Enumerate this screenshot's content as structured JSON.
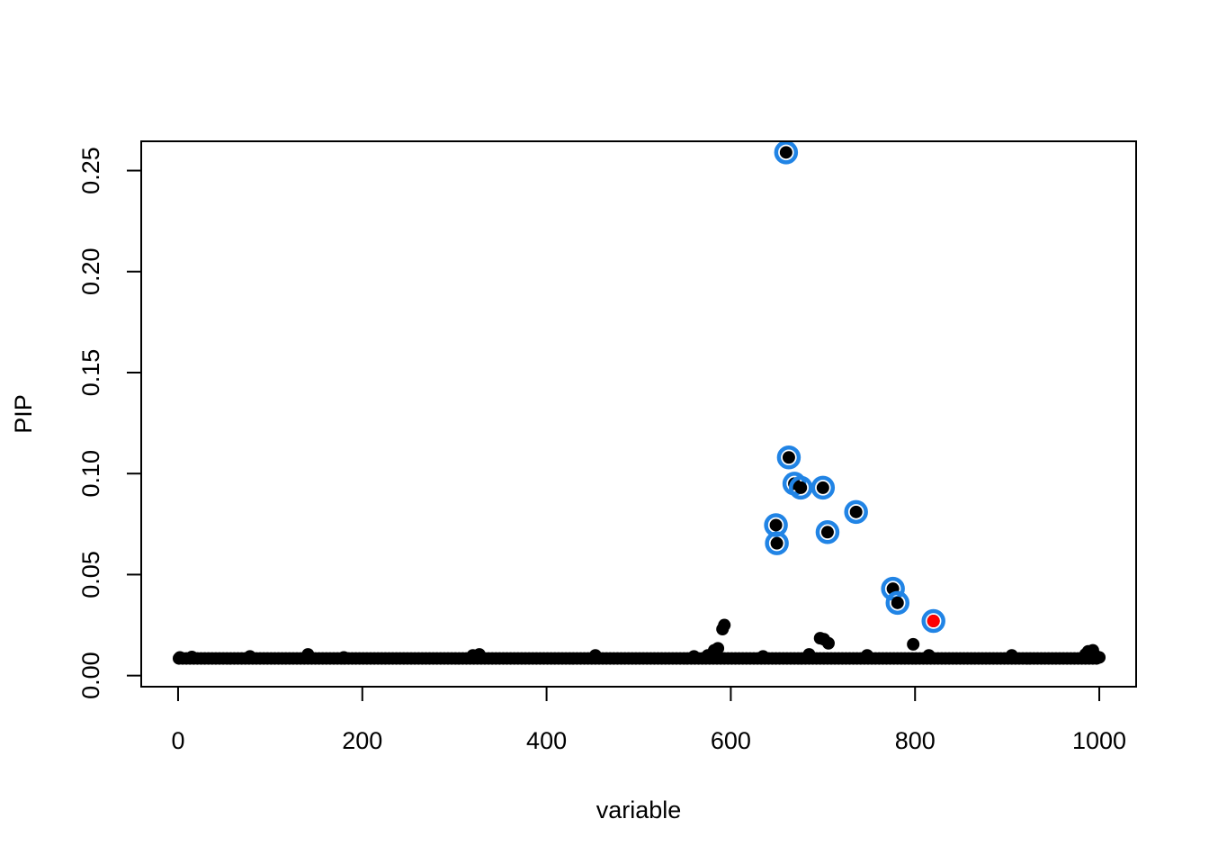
{
  "chart_data": {
    "type": "scatter",
    "xlabel": "variable",
    "ylabel": "PIP",
    "xlim": [
      -40,
      1040
    ],
    "ylim": [
      -0.0055,
      0.2645
    ],
    "x_ticks": [
      0,
      200,
      400,
      600,
      800,
      1000
    ],
    "x_tick_labels": [
      "0",
      "200",
      "400",
      "600",
      "800",
      "1000"
    ],
    "y_ticks": [
      0.0,
      0.05,
      0.1,
      0.15,
      0.2,
      0.25
    ],
    "y_tick_labels": [
      "0.00",
      "0.05",
      "0.10",
      "0.15",
      "0.20",
      "0.25"
    ],
    "grid": false,
    "colors": {
      "points": "#000000",
      "highlight_ring": "#2184e5",
      "true_effect": "#ff0000"
    },
    "baseline": {
      "x_start": 1,
      "x_end": 1000,
      "value": 0.0085,
      "description_values_note": "most variables have PIP near 0.0085"
    },
    "points": [
      {
        "x": 2,
        "y": 0.009
      },
      {
        "x": 15,
        "y": 0.0092
      },
      {
        "x": 78,
        "y": 0.0095
      },
      {
        "x": 141,
        "y": 0.0105
      },
      {
        "x": 180,
        "y": 0.009
      },
      {
        "x": 320,
        "y": 0.01
      },
      {
        "x": 327,
        "y": 0.0105
      },
      {
        "x": 453,
        "y": 0.01
      },
      {
        "x": 560,
        "y": 0.0095
      },
      {
        "x": 575,
        "y": 0.01
      },
      {
        "x": 582,
        "y": 0.0125
      },
      {
        "x": 586,
        "y": 0.0135
      },
      {
        "x": 591,
        "y": 0.023
      },
      {
        "x": 593,
        "y": 0.025
      },
      {
        "x": 635,
        "y": 0.0095
      },
      {
        "x": 685,
        "y": 0.0105
      },
      {
        "x": 697,
        "y": 0.0185
      },
      {
        "x": 701,
        "y": 0.018
      },
      {
        "x": 706,
        "y": 0.016
      },
      {
        "x": 748,
        "y": 0.01
      },
      {
        "x": 798,
        "y": 0.0155
      },
      {
        "x": 815,
        "y": 0.01
      },
      {
        "x": 905,
        "y": 0.01
      },
      {
        "x": 985,
        "y": 0.0105
      },
      {
        "x": 988,
        "y": 0.012
      },
      {
        "x": 993,
        "y": 0.0125
      },
      {
        "x": 997,
        "y": 0.0095
      },
      {
        "x": 1000,
        "y": 0.009
      }
    ],
    "highlighted_points": [
      {
        "x": 660,
        "y": 0.259
      },
      {
        "x": 663,
        "y": 0.108
      },
      {
        "x": 669,
        "y": 0.095
      },
      {
        "x": 676,
        "y": 0.093
      },
      {
        "x": 700,
        "y": 0.093
      },
      {
        "x": 736,
        "y": 0.081
      },
      {
        "x": 649,
        "y": 0.0745
      },
      {
        "x": 705,
        "y": 0.071
      },
      {
        "x": 650,
        "y": 0.0655
      },
      {
        "x": 776,
        "y": 0.043
      },
      {
        "x": 781,
        "y": 0.036
      },
      {
        "x": 820,
        "y": 0.027
      }
    ],
    "true_effect_points": [
      {
        "x": 820,
        "y": 0.027
      }
    ]
  }
}
